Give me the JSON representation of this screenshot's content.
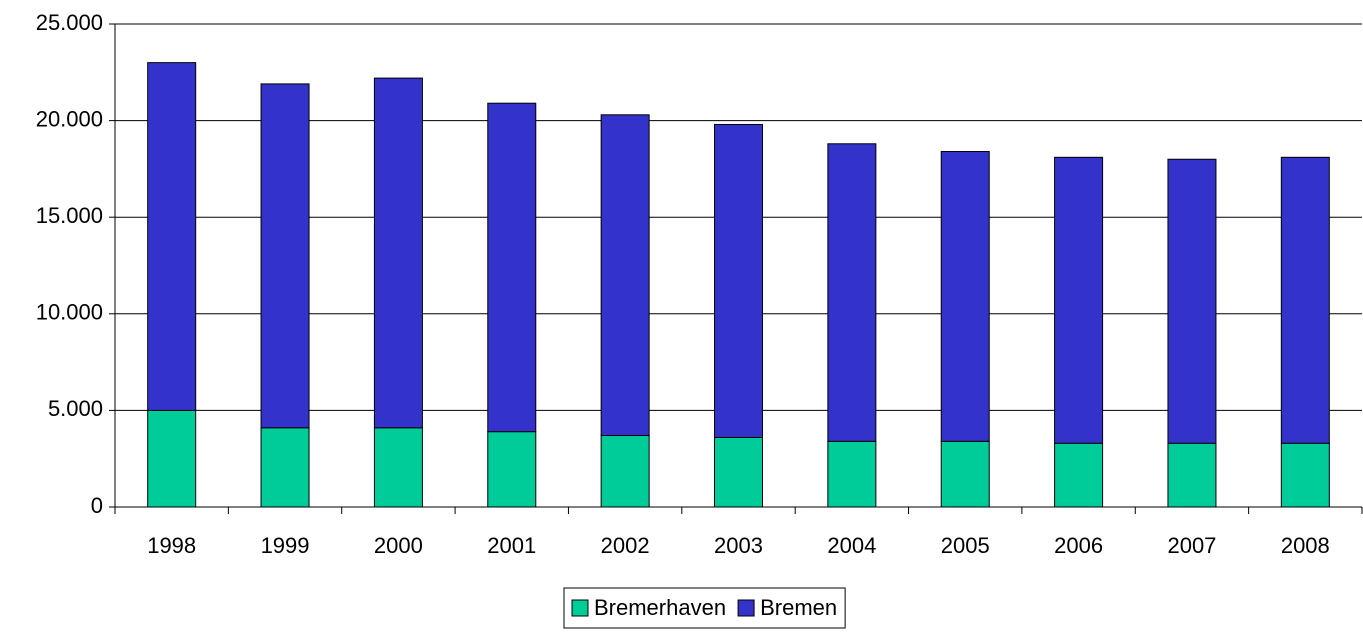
{
  "chart_data": {
    "type": "stacked-bar",
    "categories": [
      "1998",
      "1999",
      "2000",
      "2001",
      "2002",
      "2003",
      "2004",
      "2005",
      "2006",
      "2007",
      "2008"
    ],
    "series": [
      {
        "name": "Bremerhaven",
        "color": "#00cc99",
        "values": [
          5000,
          4100,
          4100,
          3900,
          3700,
          3600,
          3400,
          3400,
          3300,
          3300,
          3300
        ]
      },
      {
        "name": "Bremen",
        "color": "#3333cc",
        "values": [
          18000,
          17800,
          18100,
          17000,
          16600,
          16200,
          15400,
          15000,
          14800,
          14700,
          14800
        ]
      }
    ],
    "ylim": [
      0,
      25000
    ],
    "yticks": [
      0,
      {
        "value": 5000,
        "label": "5.000"
      },
      {
        "value": 10000,
        "label": "10.000"
      },
      {
        "value": 15000,
        "label": "15.000"
      },
      {
        "value": 20000,
        "label": "20.000"
      },
      {
        "value": 25000,
        "label": "25.000"
      }
    ],
    "grid": true,
    "legend": "bottom"
  }
}
